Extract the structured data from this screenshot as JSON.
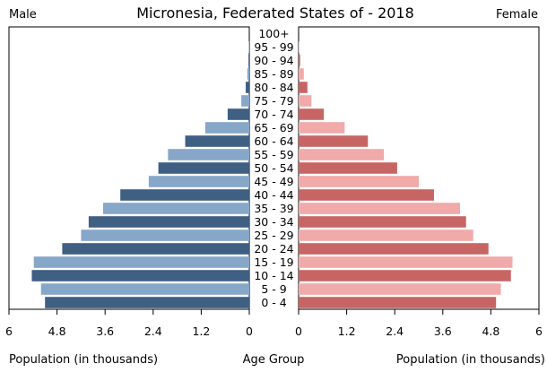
{
  "chart_data": {
    "type": "bar",
    "title": "Micronesia, Federated States of - 2018",
    "left_label": "Male",
    "right_label": "Female",
    "xlabel_left": "Population (in thousands)",
    "xlabel_center": "Age Group",
    "xlabel_right": "Population (in thousands)",
    "xlim": [
      0,
      6
    ],
    "tick_labels_left": [
      "6",
      "4.8",
      "3.6",
      "2.4",
      "1.2",
      "0"
    ],
    "tick_labels_right": [
      "0",
      "1.2",
      "2.4",
      "3.6",
      "4.8",
      "6"
    ],
    "tick_values_left": [
      6,
      4.8,
      3.6,
      2.4,
      1.2,
      0
    ],
    "tick_values_right": [
      0,
      1.2,
      2.4,
      3.6,
      4.8,
      6
    ],
    "categories": [
      "100+",
      "95 - 99",
      "90 - 94",
      "85 - 89",
      "80 - 84",
      "75 - 79",
      "70 - 74",
      "65 - 69",
      "60 - 64",
      "55 - 59",
      "50 - 54",
      "45 - 49",
      "40 - 44",
      "35 - 39",
      "30 - 34",
      "25 - 29",
      "20 - 24",
      "15 - 19",
      "10 - 14",
      "5 - 9",
      "0 - 4"
    ],
    "series": [
      {
        "name": "Male",
        "values": [
          0.0,
          0.01,
          0.02,
          0.05,
          0.09,
          0.2,
          0.54,
          1.1,
          1.6,
          2.03,
          2.27,
          2.51,
          3.22,
          3.65,
          4.01,
          4.2,
          4.67,
          5.38,
          5.43,
          5.2,
          5.1
        ]
      },
      {
        "name": "Female",
        "values": [
          0.0,
          0.01,
          0.04,
          0.13,
          0.22,
          0.32,
          0.63,
          1.15,
          1.73,
          2.13,
          2.46,
          3.0,
          3.38,
          4.03,
          4.18,
          4.36,
          4.74,
          5.34,
          5.3,
          5.05,
          4.93
        ]
      }
    ],
    "colors": {
      "male_dark": "#3f5f83",
      "male_light": "#87a7c9",
      "female_dark": "#c76565",
      "female_light": "#f0aaaa"
    }
  }
}
